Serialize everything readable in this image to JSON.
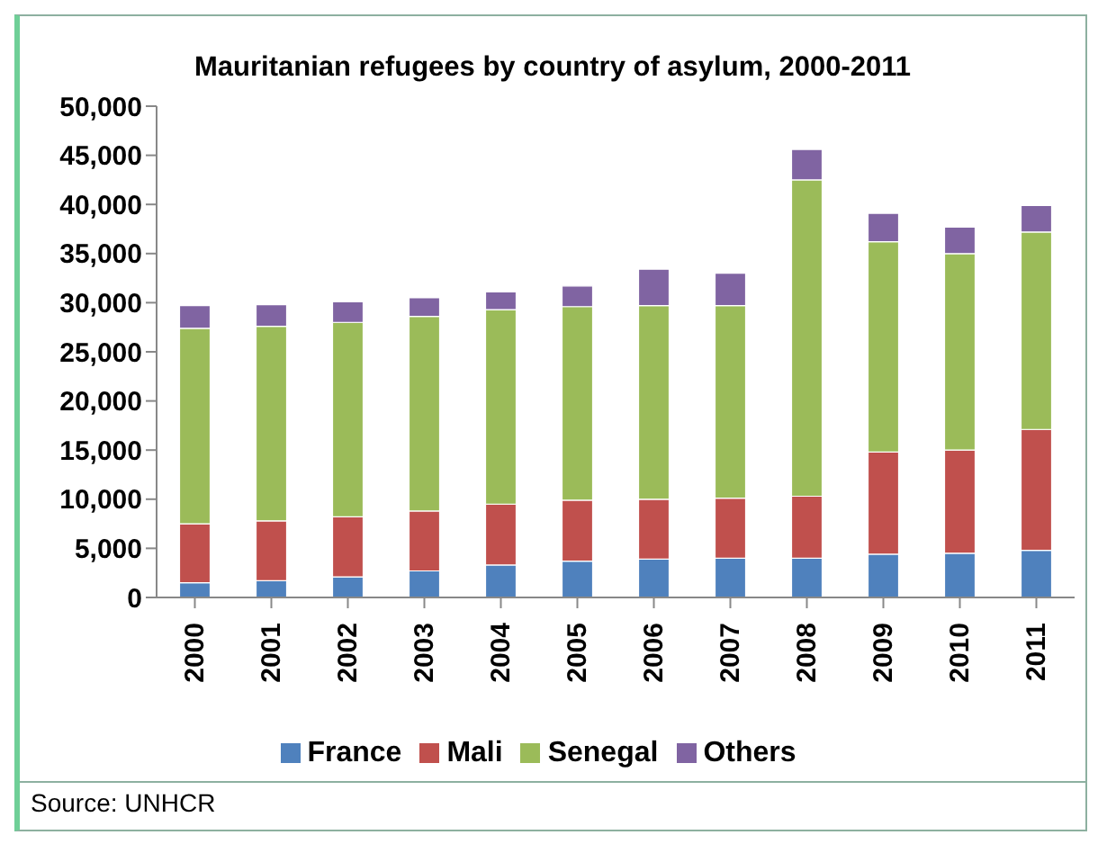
{
  "chart_data": {
    "type": "bar",
    "stacked": true,
    "title": "Mauritanian refugees by country of asylum, 2000-2011",
    "categories": [
      "2000",
      "2001",
      "2002",
      "2003",
      "2004",
      "2005",
      "2006",
      "2007",
      "2008",
      "2009",
      "2010",
      "2011"
    ],
    "series": [
      {
        "name": "France",
        "color": "#4f81bd",
        "values": [
          1500,
          1700,
          2100,
          2700,
          3300,
          3700,
          3900,
          4000,
          4000,
          4400,
          4500,
          4800
        ]
      },
      {
        "name": "Mali",
        "color": "#c0504d",
        "values": [
          6000,
          6100,
          6100,
          6100,
          6200,
          6200,
          6100,
          6100,
          6300,
          10400,
          10500,
          12300
        ]
      },
      {
        "name": "Senegal",
        "color": "#9bbb59",
        "values": [
          19900,
          19800,
          19800,
          19800,
          19800,
          19700,
          19700,
          19600,
          32200,
          21400,
          20000,
          20100
        ]
      },
      {
        "name": "Others",
        "color": "#8064a2",
        "values": [
          2300,
          2200,
          2100,
          1900,
          1800,
          2100,
          3700,
          3300,
          3100,
          2900,
          2700,
          2700
        ]
      }
    ],
    "ylim": [
      0,
      50000
    ],
    "yticks": [
      {
        "value": 0,
        "label": "0"
      },
      {
        "value": 5000,
        "label": "5,000"
      },
      {
        "value": 10000,
        "label": "10,000"
      },
      {
        "value": 15000,
        "label": "15,000"
      },
      {
        "value": 20000,
        "label": "20,000"
      },
      {
        "value": 25000,
        "label": "25,000"
      },
      {
        "value": 30000,
        "label": "30,000"
      },
      {
        "value": 35000,
        "label": "35,000"
      },
      {
        "value": 40000,
        "label": "40,000"
      },
      {
        "value": 45000,
        "label": "45,000"
      },
      {
        "value": 50000,
        "label": "50,000"
      }
    ],
    "grid": false,
    "legend": "bottom",
    "annotations": [
      "Source: UNHCR"
    ]
  }
}
